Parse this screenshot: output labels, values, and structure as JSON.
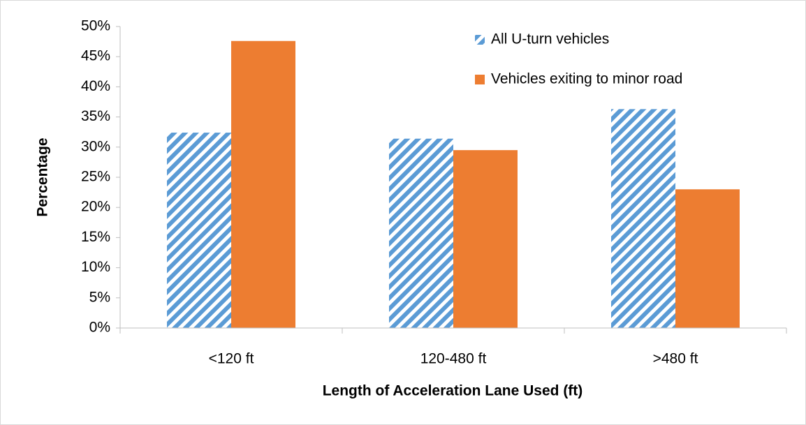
{
  "chart_data": {
    "type": "bar",
    "x_label": "Length of Acceleration Lane Used (ft)",
    "y_label": "Percentage",
    "categories": [
      "<120 ft",
      "120-480 ft",
      ">480 ft"
    ],
    "series": [
      {
        "name": "All U-turn vehicles",
        "color": "#5b9bd5",
        "pattern": "diagonal-hatch",
        "values": [
          32.4,
          31.4,
          36.3
        ]
      },
      {
        "name": "Vehicles exiting to minor road",
        "color": "#ed7d31",
        "values": [
          47.6,
          29.5,
          23.0
        ]
      }
    ],
    "ylim": [
      0,
      50
    ],
    "yticks": [
      {
        "value": 0,
        "label": "0%"
      },
      {
        "value": 5,
        "label": "5%"
      },
      {
        "value": 10,
        "label": "10%"
      },
      {
        "value": 15,
        "label": "15%"
      },
      {
        "value": 20,
        "label": "20%"
      },
      {
        "value": 25,
        "label": "25%"
      },
      {
        "value": 30,
        "label": "30%"
      },
      {
        "value": 35,
        "label": "35%"
      },
      {
        "value": 40,
        "label": "40%"
      },
      {
        "value": 45,
        "label": "45%"
      },
      {
        "value": 50,
        "label": "50%"
      }
    ],
    "grid": false,
    "legend": "top-right"
  }
}
